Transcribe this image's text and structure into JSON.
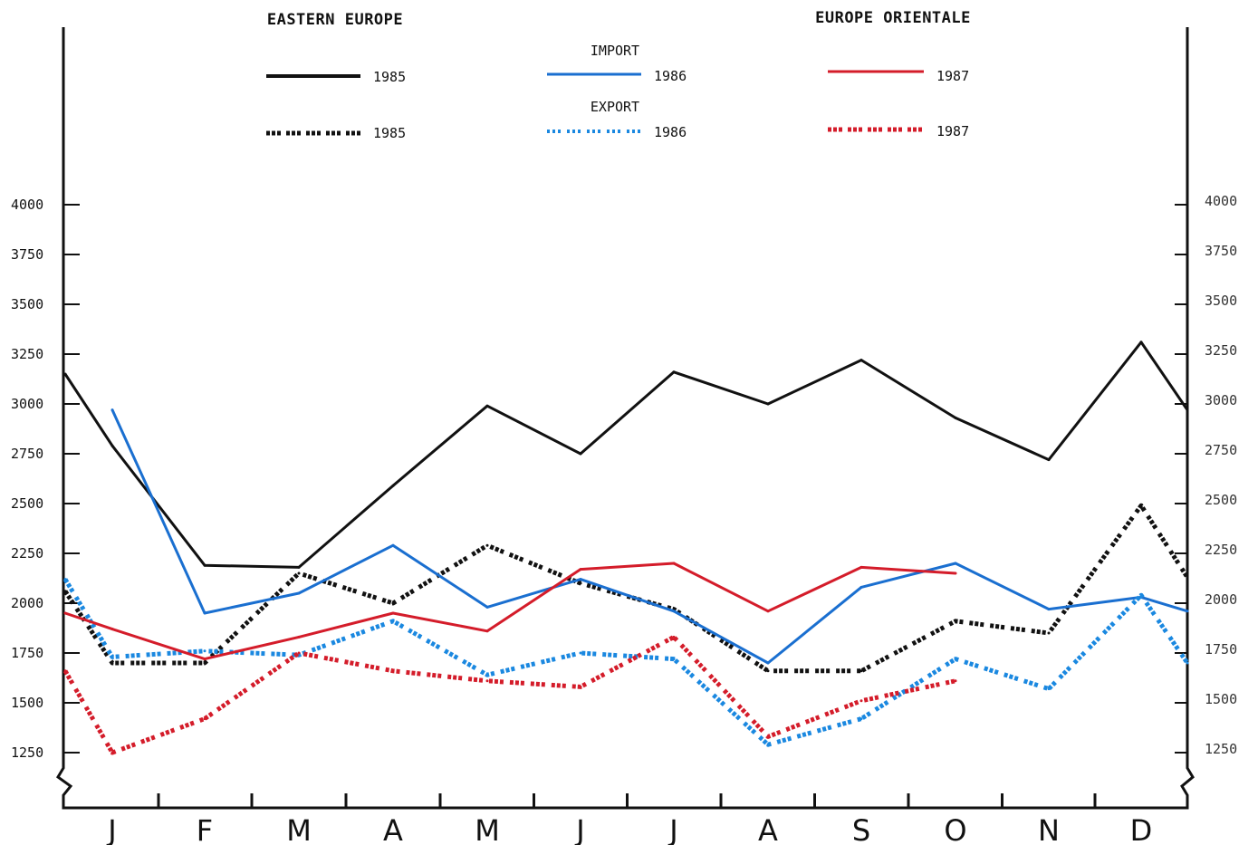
{
  "chart_data": {
    "type": "line",
    "title_left": "EASTERN EUROPE",
    "title_right": "EUROPE ORIENTALE",
    "legend": {
      "import_label": "IMPORT",
      "export_label": "EXPORT",
      "years": [
        "1985",
        "1986",
        "1987"
      ]
    },
    "categories": [
      "J",
      "F",
      "M",
      "A",
      "M",
      "J",
      "J",
      "A",
      "S",
      "O",
      "N",
      "D"
    ],
    "ylim": [
      1250,
      4000
    ],
    "yticks": [
      "4000",
      "3750",
      "3500",
      "3250",
      "3000",
      "2750",
      "2500",
      "2250",
      "2000",
      "1750",
      "1500",
      "1250"
    ],
    "yticks_right": [
      "4000",
      "3750",
      "3500",
      "3250",
      "3000",
      "2750",
      "2500",
      "2250",
      "2000",
      "1750",
      "1500",
      "1250"
    ],
    "colors": {
      "y1985": "#111111",
      "y1986_import": "#1a6fd0",
      "y1986_import_jan": "#2ab0f0",
      "y1986_export": "#1a88e0",
      "y1987": "#d41c2a"
    },
    "series": [
      {
        "name": "1985",
        "kind": "import",
        "color": "#111111",
        "points": [
          {
            "x": "Jan",
            "y": 3150
          },
          {
            "x": "Jan",
            "y": 2790
          },
          {
            "x": "Feb",
            "y": 2190
          },
          {
            "x": "Mar",
            "y": 2180
          },
          {
            "x": "Apr",
            "y": 2590
          },
          {
            "x": "May",
            "y": 2990
          },
          {
            "x": "Jun",
            "y": 2750
          },
          {
            "x": "Jul",
            "y": 3160
          },
          {
            "x": "Aug",
            "y": 3000
          },
          {
            "x": "Sep",
            "y": 3220
          },
          {
            "x": "Oct",
            "y": 2930
          },
          {
            "x": "Nov",
            "y": 2720
          },
          {
            "x": "Dec",
            "y": 3310
          },
          {
            "x": "Dec",
            "y": 2970
          }
        ]
      },
      {
        "name": "1985",
        "kind": "export",
        "color": "#111111",
        "points": [
          {
            "x": "Jan",
            "y": 2060
          },
          {
            "x": "Jan",
            "y": 1700
          },
          {
            "x": "Feb",
            "y": 1700
          },
          {
            "x": "Mar",
            "y": 2150
          },
          {
            "x": "Apr",
            "y": 2000
          },
          {
            "x": "May",
            "y": 2290
          },
          {
            "x": "Jun",
            "y": 2100
          },
          {
            "x": "Jul",
            "y": 1970
          },
          {
            "x": "Aug",
            "y": 1660
          },
          {
            "x": "Sep",
            "y": 1660
          },
          {
            "x": "Oct",
            "y": 1910
          },
          {
            "x": "Nov",
            "y": 1850
          },
          {
            "x": "Dec",
            "y": 2490
          },
          {
            "x": "Dec",
            "y": 2130
          }
        ]
      },
      {
        "name": "1986",
        "kind": "import",
        "color": "#1a6fd0",
        "points": [
          {
            "x": "Jan",
            "y": 2970
          },
          {
            "x": "Feb",
            "y": 1950
          },
          {
            "x": "Mar",
            "y": 2050
          },
          {
            "x": "Apr",
            "y": 2290
          },
          {
            "x": "May",
            "y": 1980
          },
          {
            "x": "Jun",
            "y": 2120
          },
          {
            "x": "Jul",
            "y": 1960
          },
          {
            "x": "Aug",
            "y": 1700
          },
          {
            "x": "Sep",
            "y": 2080
          },
          {
            "x": "Oct",
            "y": 2200
          },
          {
            "x": "Nov",
            "y": 1970
          },
          {
            "x": "Dec",
            "y": 2030
          },
          {
            "x": "Dec",
            "y": 1960
          }
        ]
      },
      {
        "name": "1986",
        "kind": "export",
        "color": "#1a88e0",
        "points": [
          {
            "x": "Jan",
            "y": 2120
          },
          {
            "x": "Jan",
            "y": 1730
          },
          {
            "x": "Feb",
            "y": 1760
          },
          {
            "x": "Mar",
            "y": 1740
          },
          {
            "x": "Apr",
            "y": 1910
          },
          {
            "x": "May",
            "y": 1640
          },
          {
            "x": "Jun",
            "y": 1750
          },
          {
            "x": "Jul",
            "y": 1720
          },
          {
            "x": "Aug",
            "y": 1290
          },
          {
            "x": "Sep",
            "y": 1420
          },
          {
            "x": "Oct",
            "y": 1720
          },
          {
            "x": "Nov",
            "y": 1570
          },
          {
            "x": "Dec",
            "y": 2040
          },
          {
            "x": "Dec",
            "y": 1700
          }
        ]
      },
      {
        "name": "1987",
        "kind": "import",
        "color": "#d41c2a",
        "points": [
          {
            "x": "Jan",
            "y": 1950
          },
          {
            "x": "Jan",
            "y": 1870
          },
          {
            "x": "Feb",
            "y": 1720
          },
          {
            "x": "Mar",
            "y": 1830
          },
          {
            "x": "Apr",
            "y": 1950
          },
          {
            "x": "May",
            "y": 1860
          },
          {
            "x": "Jun",
            "y": 2170
          },
          {
            "x": "Jul",
            "y": 2200
          },
          {
            "x": "Aug",
            "y": 1960
          },
          {
            "x": "Sep",
            "y": 2180
          },
          {
            "x": "Oct",
            "y": 2150
          }
        ]
      },
      {
        "name": "1987",
        "kind": "export",
        "color": "#d41c2a",
        "points": [
          {
            "x": "Jan",
            "y": 1660
          },
          {
            "x": "Jan",
            "y": 1250
          },
          {
            "x": "Feb",
            "y": 1420
          },
          {
            "x": "Mar",
            "y": 1750
          },
          {
            "x": "Apr",
            "y": 1660
          },
          {
            "x": "May",
            "y": 1610
          },
          {
            "x": "Jun",
            "y": 1580
          },
          {
            "x": "Jul",
            "y": 1830
          },
          {
            "x": "Aug",
            "y": 1330
          },
          {
            "x": "Sep",
            "y": 1510
          },
          {
            "x": "Oct",
            "y": 1610
          }
        ]
      }
    ]
  }
}
